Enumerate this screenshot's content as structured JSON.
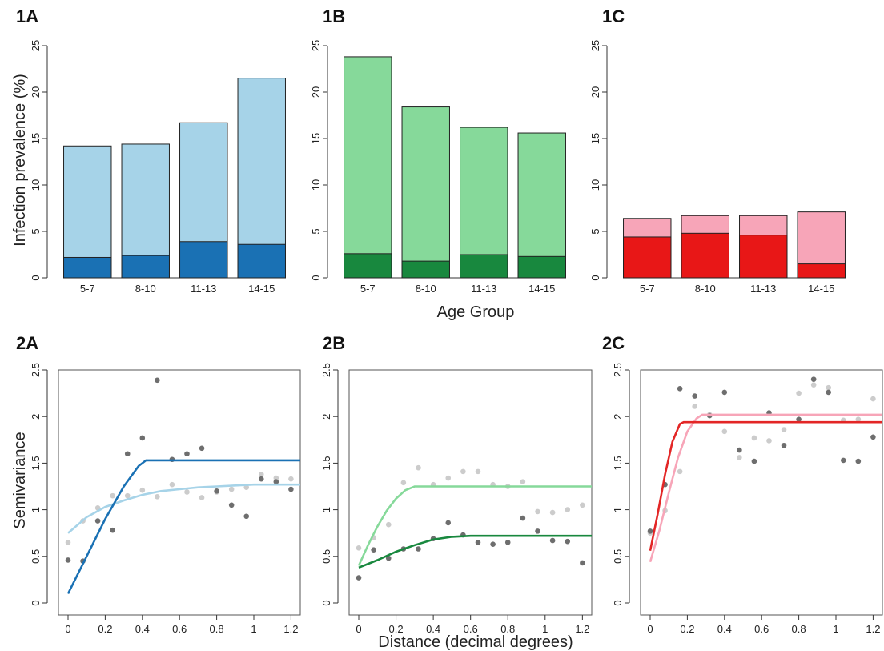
{
  "figure": {
    "bar_ylabel": "Infection prevalence (%)",
    "bar_xlabel": "Age Group",
    "variogram_ylabel": "Semivariance",
    "variogram_xlabel": "Distance (decimal degrees)"
  },
  "chart_data": [
    {
      "id": "1A",
      "type": "bar",
      "panel_label": "1A",
      "categories": [
        "5-7",
        "8-10",
        "11-13",
        "14-15"
      ],
      "series": [
        {
          "values": [
            14.2,
            14.4,
            16.7,
            21.5
          ],
          "color": "#a6d3e8"
        },
        {
          "values": [
            2.2,
            2.4,
            3.9,
            3.6
          ],
          "color": "#1a71b4"
        }
      ],
      "ylim": [
        0,
        25
      ],
      "yticks": [
        0,
        5,
        10,
        15,
        20,
        25
      ]
    },
    {
      "id": "1B",
      "type": "bar",
      "panel_label": "1B",
      "categories": [
        "5-7",
        "8-10",
        "11-13",
        "14-15"
      ],
      "series": [
        {
          "values": [
            23.8,
            18.4,
            16.2,
            15.6
          ],
          "color": "#86d99a"
        },
        {
          "values": [
            2.6,
            1.8,
            2.5,
            2.3
          ],
          "color": "#18883e"
        }
      ],
      "ylim": [
        0,
        25
      ],
      "yticks": [
        0,
        5,
        10,
        15,
        20,
        25
      ]
    },
    {
      "id": "1C",
      "type": "bar",
      "panel_label": "1C",
      "categories": [
        "5-7",
        "8-10",
        "11-13",
        "14-15"
      ],
      "series": [
        {
          "values": [
            6.4,
            6.7,
            6.7,
            7.1
          ],
          "color": "#f7a5b8"
        },
        {
          "values": [
            4.4,
            4.8,
            4.6,
            1.5
          ],
          "color": "#e81717"
        }
      ],
      "ylim": [
        0,
        25
      ],
      "yticks": [
        0,
        5,
        10,
        15,
        20,
        25
      ]
    },
    {
      "id": "2A",
      "type": "scatter",
      "panel_label": "2A",
      "xlim": [
        0,
        1.25
      ],
      "ylim": [
        0,
        2.5
      ],
      "xticks": [
        0,
        0.2,
        0.4,
        0.6,
        0.8,
        1,
        1.2
      ],
      "yticks": [
        0,
        0.5,
        1,
        1.5,
        2,
        2.5
      ],
      "series": [
        {
          "points_color": "#cccccc",
          "line_color": "#a6d3e8",
          "points": [
            [
              0,
              0.65
            ],
            [
              0.08,
              0.88
            ],
            [
              0.16,
              1.02
            ],
            [
              0.24,
              1.15
            ],
            [
              0.32,
              1.15
            ],
            [
              0.4,
              1.21
            ],
            [
              0.48,
              1.14
            ],
            [
              0.56,
              1.27
            ],
            [
              0.64,
              1.19
            ],
            [
              0.72,
              1.13
            ],
            [
              0.8,
              1.19
            ],
            [
              0.88,
              1.22
            ],
            [
              0.96,
              1.24
            ],
            [
              1.04,
              1.38
            ],
            [
              1.12,
              1.34
            ],
            [
              1.2,
              1.33
            ]
          ],
          "curve": [
            [
              0,
              0.75
            ],
            [
              0.1,
              0.92
            ],
            [
              0.2,
              1.03
            ],
            [
              0.3,
              1.1
            ],
            [
              0.4,
              1.16
            ],
            [
              0.5,
              1.2
            ],
            [
              0.6,
              1.22
            ],
            [
              0.7,
              1.24
            ],
            [
              0.8,
              1.25
            ],
            [
              0.9,
              1.26
            ],
            [
              1.0,
              1.27
            ],
            [
              1.1,
              1.27
            ],
            [
              1.25,
              1.27
            ]
          ]
        },
        {
          "points_color": "#6e6e6e",
          "line_color": "#1a71b4",
          "points": [
            [
              0,
              0.46
            ],
            [
              0.08,
              0.45
            ],
            [
              0.16,
              0.88
            ],
            [
              0.24,
              0.78
            ],
            [
              0.32,
              1.6
            ],
            [
              0.4,
              1.77
            ],
            [
              0.48,
              2.39
            ],
            [
              0.56,
              1.54
            ],
            [
              0.64,
              1.6
            ],
            [
              0.72,
              1.66
            ],
            [
              0.8,
              1.2
            ],
            [
              0.88,
              1.05
            ],
            [
              0.96,
              0.93
            ],
            [
              1.04,
              1.33
            ],
            [
              1.12,
              1.3
            ],
            [
              1.2,
              1.22
            ]
          ],
          "curve": [
            [
              0,
              0.1
            ],
            [
              0.1,
              0.5
            ],
            [
              0.2,
              0.9
            ],
            [
              0.3,
              1.25
            ],
            [
              0.38,
              1.47
            ],
            [
              0.42,
              1.53
            ],
            [
              0.6,
              1.53
            ],
            [
              0.8,
              1.53
            ],
            [
              1.0,
              1.53
            ],
            [
              1.25,
              1.53
            ]
          ]
        }
      ]
    },
    {
      "id": "2B",
      "type": "scatter",
      "panel_label": "2B",
      "xlim": [
        0,
        1.25
      ],
      "ylim": [
        0,
        2.5
      ],
      "xticks": [
        0,
        0.2,
        0.4,
        0.6,
        0.8,
        1,
        1.2
      ],
      "yticks": [
        0,
        0.5,
        1,
        1.5,
        2,
        2.5
      ],
      "series": [
        {
          "points_color": "#cccccc",
          "line_color": "#86d99a",
          "points": [
            [
              0,
              0.59
            ],
            [
              0.08,
              0.7
            ],
            [
              0.16,
              0.84
            ],
            [
              0.24,
              1.29
            ],
            [
              0.32,
              1.45
            ],
            [
              0.4,
              1.27
            ],
            [
              0.48,
              1.34
            ],
            [
              0.56,
              1.41
            ],
            [
              0.64,
              1.41
            ],
            [
              0.72,
              1.27
            ],
            [
              0.8,
              1.25
            ],
            [
              0.88,
              1.3
            ],
            [
              0.96,
              0.98
            ],
            [
              1.04,
              0.97
            ],
            [
              1.12,
              1.0
            ],
            [
              1.2,
              1.05
            ]
          ],
          "curve": [
            [
              0,
              0.4
            ],
            [
              0.05,
              0.62
            ],
            [
              0.1,
              0.82
            ],
            [
              0.15,
              0.99
            ],
            [
              0.2,
              1.12
            ],
            [
              0.25,
              1.21
            ],
            [
              0.3,
              1.25
            ],
            [
              0.5,
              1.25
            ],
            [
              0.8,
              1.25
            ],
            [
              1.0,
              1.25
            ],
            [
              1.25,
              1.25
            ]
          ]
        },
        {
          "points_color": "#6e6e6e",
          "line_color": "#18883e",
          "points": [
            [
              0,
              0.27
            ],
            [
              0.08,
              0.57
            ],
            [
              0.16,
              0.48
            ],
            [
              0.24,
              0.58
            ],
            [
              0.32,
              0.58
            ],
            [
              0.4,
              0.69
            ],
            [
              0.48,
              0.86
            ],
            [
              0.56,
              0.73
            ],
            [
              0.64,
              0.65
            ],
            [
              0.72,
              0.63
            ],
            [
              0.8,
              0.65
            ],
            [
              0.88,
              0.91
            ],
            [
              0.96,
              0.77
            ],
            [
              1.04,
              0.67
            ],
            [
              1.12,
              0.66
            ],
            [
              1.2,
              0.43
            ]
          ],
          "curve": [
            [
              0,
              0.38
            ],
            [
              0.1,
              0.46
            ],
            [
              0.2,
              0.55
            ],
            [
              0.3,
              0.62
            ],
            [
              0.4,
              0.68
            ],
            [
              0.5,
              0.71
            ],
            [
              0.6,
              0.72
            ],
            [
              0.8,
              0.72
            ],
            [
              1.0,
              0.72
            ],
            [
              1.25,
              0.72
            ]
          ]
        }
      ]
    },
    {
      "id": "2C",
      "type": "scatter",
      "panel_label": "2C",
      "xlim": [
        0,
        1.25
      ],
      "ylim": [
        0,
        2.5
      ],
      "xticks": [
        0,
        0.2,
        0.4,
        0.6,
        0.8,
        1,
        1.2
      ],
      "yticks": [
        0,
        0.5,
        1,
        1.5,
        2,
        2.5
      ],
      "series": [
        {
          "points_color": "#cccccc",
          "line_color": "#f7a5b8",
          "points": [
            [
              0,
              0.75
            ],
            [
              0.08,
              0.99
            ],
            [
              0.16,
              1.41
            ],
            [
              0.24,
              2.11
            ],
            [
              0.32,
              2.02
            ],
            [
              0.4,
              1.84
            ],
            [
              0.48,
              1.56
            ],
            [
              0.56,
              1.77
            ],
            [
              0.64,
              1.74
            ],
            [
              0.72,
              1.86
            ],
            [
              0.8,
              2.25
            ],
            [
              0.88,
              2.34
            ],
            [
              0.96,
              2.31
            ],
            [
              1.04,
              1.96
            ],
            [
              1.12,
              1.97
            ],
            [
              1.2,
              2.19
            ]
          ],
          "curve": [
            [
              0,
              0.44
            ],
            [
              0.05,
              0.78
            ],
            [
              0.1,
              1.18
            ],
            [
              0.15,
              1.56
            ],
            [
              0.2,
              1.84
            ],
            [
              0.25,
              1.98
            ],
            [
              0.28,
              2.02
            ],
            [
              0.5,
              2.02
            ],
            [
              0.8,
              2.02
            ],
            [
              1.0,
              2.02
            ],
            [
              1.25,
              2.02
            ]
          ]
        },
        {
          "points_color": "#6e6e6e",
          "line_color": "#e32626",
          "points": [
            [
              0,
              0.77
            ],
            [
              0.08,
              1.27
            ],
            [
              0.16,
              2.3
            ],
            [
              0.24,
              2.22
            ],
            [
              0.32,
              2.01
            ],
            [
              0.4,
              2.26
            ],
            [
              0.48,
              1.64
            ],
            [
              0.56,
              1.52
            ],
            [
              0.64,
              2.04
            ],
            [
              0.72,
              1.69
            ],
            [
              0.8,
              1.97
            ],
            [
              0.88,
              2.4
            ],
            [
              0.96,
              2.26
            ],
            [
              1.04,
              1.53
            ],
            [
              1.12,
              1.52
            ],
            [
              1.2,
              1.78
            ]
          ],
          "curve": [
            [
              0,
              0.56
            ],
            [
              0.04,
              0.95
            ],
            [
              0.08,
              1.38
            ],
            [
              0.12,
              1.73
            ],
            [
              0.16,
              1.92
            ],
            [
              0.18,
              1.94
            ],
            [
              0.4,
              1.94
            ],
            [
              0.8,
              1.94
            ],
            [
              1.0,
              1.94
            ],
            [
              1.25,
              1.94
            ]
          ]
        }
      ]
    }
  ]
}
